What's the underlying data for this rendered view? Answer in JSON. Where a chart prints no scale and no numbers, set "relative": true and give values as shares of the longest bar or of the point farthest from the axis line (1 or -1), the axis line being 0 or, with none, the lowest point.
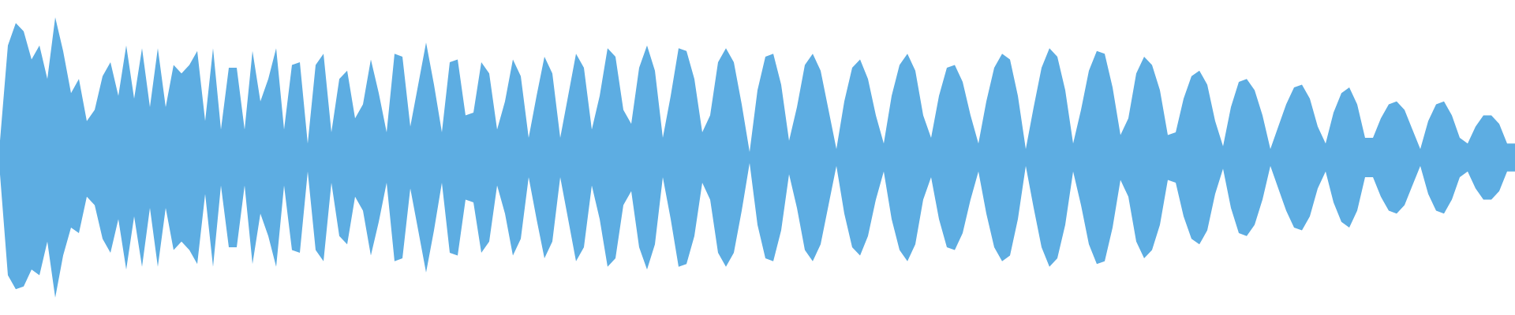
{
  "chart_data": {
    "type": "area",
    "relative": true,
    "categories": [
      null,
      null,
      null,
      null,
      null,
      null,
      null,
      null,
      null,
      null,
      null,
      null,
      null,
      null,
      null,
      null,
      null,
      null,
      null,
      null,
      null,
      null,
      null,
      null,
      null,
      null,
      null,
      null,
      null,
      null,
      null,
      null,
      null,
      null,
      null,
      null,
      null,
      null,
      null,
      null,
      null,
      null,
      null,
      null,
      null,
      null,
      null,
      null,
      null,
      null,
      null,
      null,
      null,
      null,
      null,
      null,
      null,
      null,
      null,
      null,
      null,
      null,
      null,
      null,
      null,
      null,
      null,
      null,
      null,
      null,
      null,
      null,
      null,
      null,
      null,
      null,
      null,
      null,
      null,
      null,
      null,
      null,
      null,
      null,
      null,
      null,
      null,
      null,
      null,
      null,
      null,
      null,
      null,
      null,
      null,
      null,
      null,
      null,
      null,
      null,
      null,
      null,
      null,
      null,
      null,
      null,
      null,
      null,
      null,
      null,
      null,
      null,
      null,
      null,
      null,
      null,
      null,
      null,
      null,
      null,
      null,
      null,
      null,
      null,
      null,
      null,
      null,
      null,
      null,
      null,
      null,
      null,
      null,
      null,
      null,
      null,
      null,
      null,
      null,
      null,
      null,
      null,
      null,
      null,
      null,
      null,
      null,
      null,
      null,
      null,
      null,
      null,
      null,
      null,
      null,
      null,
      null,
      null,
      null,
      null,
      null,
      null,
      null,
      null,
      null,
      null,
      null,
      null,
      null,
      null,
      null,
      null,
      null,
      null,
      null,
      null,
      null,
      null,
      null,
      null,
      null,
      null,
      null,
      null,
      null,
      null,
      null,
      null,
      null,
      null,
      null,
      null,
      null
    ],
    "series": [
      {
        "color": "#5dade2",
        "values": [
          0.56,
          0.9,
          0.98,
          0.95,
          0.85,
          0.9,
          0.78,
          1.0,
          0.88,
          0.73,
          0.78,
          0.63,
          0.67,
          0.79,
          0.84,
          0.72,
          0.9,
          0.71,
          0.89,
          0.68,
          0.89,
          0.68,
          0.83,
          0.8,
          0.83,
          0.88,
          0.63,
          0.89,
          0.6,
          0.82,
          0.82,
          0.6,
          0.88,
          0.7,
          0.78,
          0.89,
          0.6,
          0.83,
          0.84,
          0.55,
          0.83,
          0.87,
          0.59,
          0.78,
          0.81,
          0.64,
          0.69,
          0.85,
          0.73,
          0.59,
          0.87,
          0.86,
          0.61,
          0.76,
          0.91,
          0.76,
          0.59,
          0.84,
          0.85,
          0.65,
          0.66,
          0.84,
          0.8,
          0.6,
          0.7,
          0.85,
          0.79,
          0.57,
          0.72,
          0.86,
          0.8,
          0.57,
          0.72,
          0.87,
          0.82,
          0.6,
          0.72,
          0.89,
          0.86,
          0.67,
          0.62,
          0.82,
          0.9,
          0.81,
          0.57,
          0.72,
          0.89,
          0.88,
          0.78,
          0.59,
          0.65,
          0.84,
          0.89,
          0.84,
          0.69,
          0.52,
          0.74,
          0.86,
          0.87,
          0.76,
          0.56,
          0.68,
          0.83,
          0.87,
          0.81,
          0.67,
          0.53,
          0.7,
          0.82,
          0.85,
          0.78,
          0.65,
          0.55,
          0.72,
          0.83,
          0.87,
          0.81,
          0.65,
          0.57,
          0.72,
          0.82,
          0.83,
          0.77,
          0.65,
          0.55,
          0.7,
          0.82,
          0.87,
          0.85,
          0.72,
          0.53,
          0.68,
          0.82,
          0.89,
          0.86,
          0.74,
          0.55,
          0.67,
          0.81,
          0.88,
          0.87,
          0.75,
          0.58,
          0.64,
          0.8,
          0.86,
          0.83,
          0.74,
          0.58,
          0.59,
          0.71,
          0.79,
          0.81,
          0.76,
          0.63,
          0.54,
          0.68,
          0.77,
          0.78,
          0.74,
          0.65,
          0.53,
          0.61,
          0.69,
          0.75,
          0.76,
          0.71,
          0.61,
          0.55,
          0.66,
          0.73,
          0.75,
          0.69,
          0.57,
          0.57,
          0.64,
          0.69,
          0.7,
          0.67,
          0.6,
          0.53,
          0.63,
          0.69,
          0.7,
          0.65,
          0.57,
          0.55,
          0.61,
          0.65,
          0.65,
          0.62,
          0.55,
          0.55
        ]
      },
      {
        "color": "#ffffff",
        "values": [
          0.44,
          0.08,
          0.03,
          0.04,
          0.1,
          0.08,
          0.2,
          0.0,
          0.15,
          0.25,
          0.23,
          0.36,
          0.33,
          0.21,
          0.16,
          0.28,
          0.1,
          0.29,
          0.11,
          0.32,
          0.11,
          0.32,
          0.17,
          0.2,
          0.17,
          0.12,
          0.37,
          0.11,
          0.4,
          0.18,
          0.18,
          0.4,
          0.12,
          0.3,
          0.22,
          0.11,
          0.4,
          0.17,
          0.16,
          0.45,
          0.17,
          0.13,
          0.41,
          0.22,
          0.19,
          0.36,
          0.31,
          0.15,
          0.27,
          0.41,
          0.13,
          0.14,
          0.39,
          0.24,
          0.09,
          0.24,
          0.41,
          0.16,
          0.15,
          0.35,
          0.34,
          0.16,
          0.2,
          0.4,
          0.3,
          0.15,
          0.21,
          0.43,
          0.28,
          0.14,
          0.2,
          0.43,
          0.28,
          0.13,
          0.18,
          0.4,
          0.28,
          0.11,
          0.14,
          0.33,
          0.38,
          0.18,
          0.1,
          0.19,
          0.43,
          0.28,
          0.11,
          0.12,
          0.22,
          0.41,
          0.35,
          0.16,
          0.11,
          0.16,
          0.31,
          0.48,
          0.26,
          0.14,
          0.13,
          0.24,
          0.44,
          0.32,
          0.17,
          0.13,
          0.19,
          0.33,
          0.47,
          0.3,
          0.18,
          0.15,
          0.22,
          0.35,
          0.45,
          0.28,
          0.17,
          0.13,
          0.19,
          0.35,
          0.43,
          0.28,
          0.18,
          0.17,
          0.23,
          0.35,
          0.45,
          0.3,
          0.18,
          0.13,
          0.15,
          0.28,
          0.47,
          0.32,
          0.18,
          0.11,
          0.14,
          0.26,
          0.45,
          0.33,
          0.19,
          0.12,
          0.13,
          0.25,
          0.42,
          0.36,
          0.2,
          0.14,
          0.17,
          0.26,
          0.42,
          0.41,
          0.29,
          0.21,
          0.19,
          0.24,
          0.37,
          0.46,
          0.32,
          0.23,
          0.22,
          0.26,
          0.35,
          0.47,
          0.39,
          0.31,
          0.25,
          0.24,
          0.29,
          0.39,
          0.45,
          0.34,
          0.27,
          0.25,
          0.31,
          0.43,
          0.43,
          0.36,
          0.31,
          0.3,
          0.33,
          0.4,
          0.47,
          0.37,
          0.31,
          0.3,
          0.35,
          0.43,
          0.45,
          0.39,
          0.35,
          0.35,
          0.38,
          0.45,
          0.45
        ]
      }
    ]
  }
}
